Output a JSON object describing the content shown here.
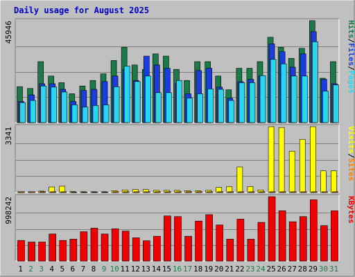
{
  "title": "Daily usage for August 2025",
  "colors": {
    "background": "#c0c0c0",
    "plot_bg": "#c0c0c0",
    "title": "#0000c8",
    "hits": "#1a7a4a",
    "files": "#1c3cdc",
    "pages": "#29d6f0",
    "visits": "#ffff00",
    "sites": "#ff8000",
    "kbytes": "#f00000",
    "weekday_label": "#000000",
    "weekend_label": "#1f7a4a"
  },
  "chart_data": [
    {
      "type": "bar",
      "title": "Daily usage for August 2025",
      "ymax_label": "45946",
      "ylim": [
        0,
        45946
      ],
      "grid": true,
      "legend": [
        {
          "text": "Pages",
          "color": "#29d6f0"
        },
        {
          "text": "/",
          "color": "#000000"
        },
        {
          "text": "Files",
          "color": "#1c3cdc"
        },
        {
          "text": "/",
          "color": "#000000"
        },
        {
          "text": "Hits",
          "color": "#1a7a4a"
        }
      ],
      "categories": [
        "1",
        "2",
        "3",
        "4",
        "5",
        "6",
        "7",
        "8",
        "9",
        "10",
        "11",
        "12",
        "13",
        "14",
        "15",
        "16",
        "17",
        "18",
        "19",
        "20",
        "21",
        "22",
        "23",
        "24",
        "25",
        "26",
        "27",
        "28",
        "29",
        "30",
        "31"
      ],
      "series": [
        {
          "name": "Hits",
          "values": [
            16200,
            15400,
            27500,
            21000,
            18000,
            13000,
            16500,
            19000,
            22000,
            28000,
            34000,
            26000,
            24000,
            31000,
            30000,
            24000,
            19000,
            27500,
            27500,
            21000,
            14800,
            24500,
            24500,
            27500,
            38500,
            34000,
            29000,
            33500,
            46000,
            20000,
            27500
          ]
        },
        {
          "name": "Files",
          "values": [
            9500,
            12500,
            17500,
            17500,
            15000,
            9500,
            14500,
            15000,
            18500,
            21000,
            24000,
            19000,
            30000,
            26000,
            24500,
            17500,
            13000,
            23500,
            24500,
            16000,
            11000,
            18500,
            19500,
            21000,
            35500,
            32000,
            25000,
            31000,
            41000,
            19500,
            17500
          ]
        },
        {
          "name": "Pages",
          "values": [
            9000,
            10000,
            16500,
            16000,
            13800,
            8000,
            7000,
            7700,
            8000,
            16200,
            25500,
            18500,
            21000,
            13500,
            13500,
            19000,
            11000,
            13000,
            15200,
            15000,
            10000,
            18000,
            18000,
            21200,
            28500,
            26500,
            21000,
            21000,
            36500,
            14200,
            17000
          ]
        }
      ]
    },
    {
      "type": "bar",
      "ymax_label": "3341",
      "ylim": [
        0,
        3341
      ],
      "grid": true,
      "legend": [
        {
          "text": "Sites",
          "color": "#ff8000"
        },
        {
          "text": "/",
          "color": "#000000"
        },
        {
          "text": "Visits",
          "color": "#ffff00"
        }
      ],
      "categories": [
        "1",
        "2",
        "3",
        "4",
        "5",
        "6",
        "7",
        "8",
        "9",
        "10",
        "11",
        "12",
        "13",
        "14",
        "15",
        "16",
        "17",
        "18",
        "19",
        "20",
        "21",
        "22",
        "23",
        "24",
        "25",
        "26",
        "27",
        "28",
        "29",
        "30",
        "31"
      ],
      "series": [
        {
          "name": "Visits",
          "values": [
            40,
            40,
            70,
            280,
            320,
            50,
            40,
            40,
            40,
            90,
            130,
            150,
            150,
            110,
            110,
            110,
            90,
            90,
            110,
            260,
            300,
            1300,
            300,
            130,
            3341,
            3300,
            2100,
            2700,
            3341,
            1100,
            1100
          ]
        },
        {
          "name": "Sites",
          "values": [
            40,
            40,
            40,
            40,
            40,
            20,
            20,
            20,
            20,
            40,
            40,
            40,
            40,
            40,
            40,
            40,
            40,
            40,
            40,
            40,
            40,
            40,
            40,
            40,
            40,
            40,
            40,
            40,
            40,
            40,
            40
          ]
        }
      ]
    },
    {
      "type": "bar",
      "ymax_label": "998242",
      "ylim": [
        0,
        998242
      ],
      "grid": true,
      "legend": [
        {
          "text": "KBytes",
          "color": "#f00000"
        }
      ],
      "categories": [
        "1",
        "2",
        "3",
        "4",
        "5",
        "6",
        "7",
        "8",
        "9",
        "10",
        "11",
        "12",
        "13",
        "14",
        "15",
        "16",
        "17",
        "18",
        "19",
        "20",
        "21",
        "22",
        "23",
        "24",
        "25",
        "26",
        "27",
        "28",
        "29",
        "30",
        "31"
      ],
      "series": [
        {
          "name": "KBytes",
          "values": [
            320000,
            295000,
            295000,
            420000,
            320000,
            340000,
            455000,
            510000,
            420000,
            500000,
            465000,
            360000,
            315000,
            385000,
            700000,
            690000,
            385000,
            620000,
            720000,
            560000,
            340000,
            650000,
            340000,
            600000,
            998242,
            780000,
            610000,
            690000,
            950000,
            550000,
            780000
          ]
        }
      ]
    }
  ],
  "x_axis_labels": [
    "1",
    "2",
    "3",
    "4",
    "5",
    "6",
    "7",
    "8",
    "9",
    "10",
    "11",
    "12",
    "13",
    "14",
    "15",
    "16",
    "17",
    "18",
    "19",
    "20",
    "21",
    "22",
    "23",
    "24",
    "25",
    "26",
    "27",
    "28",
    "29",
    "30",
    "31"
  ],
  "weekend_days": [
    "2",
    "3",
    "9",
    "10",
    "16",
    "17",
    "23",
    "24",
    "30",
    "31"
  ]
}
